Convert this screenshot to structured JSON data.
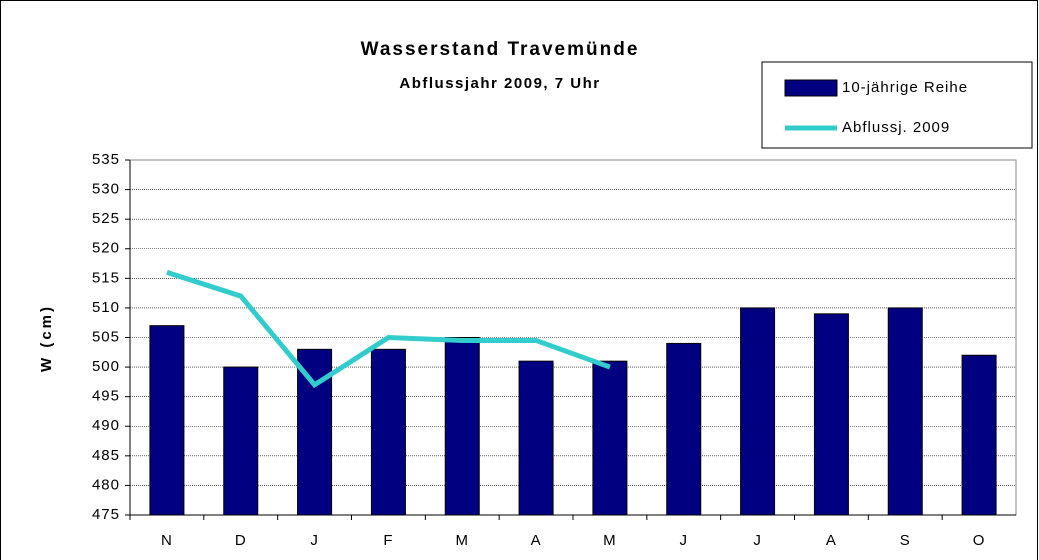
{
  "chart_data": {
    "type": "bar",
    "title": "Wasserstand Travemünde",
    "subtitle": "Abflussjahr 2009, 7 Uhr",
    "y_label": "W (cm)",
    "categories": [
      "N",
      "D",
      "J",
      "F",
      "M",
      "A",
      "M",
      "J",
      "J",
      "A",
      "S",
      "O"
    ],
    "series": [
      {
        "name": "10-jährige Reihe",
        "type": "bar",
        "color": "#000080",
        "values": [
          507,
          500,
          503,
          503,
          505,
          501,
          501,
          504,
          510,
          509,
          510,
          502
        ]
      },
      {
        "name": "Abflussj. 2009",
        "type": "line",
        "color": "#33cccc",
        "values": [
          516,
          512,
          497,
          505,
          504.5,
          504.5,
          500,
          null,
          null,
          null,
          null,
          null
        ]
      }
    ],
    "ylim": [
      475,
      535
    ],
    "yticks": [
      475,
      480,
      485,
      490,
      495,
      500,
      505,
      510,
      515,
      520,
      525,
      530,
      535
    ],
    "grid": true,
    "legend": "top-right"
  }
}
